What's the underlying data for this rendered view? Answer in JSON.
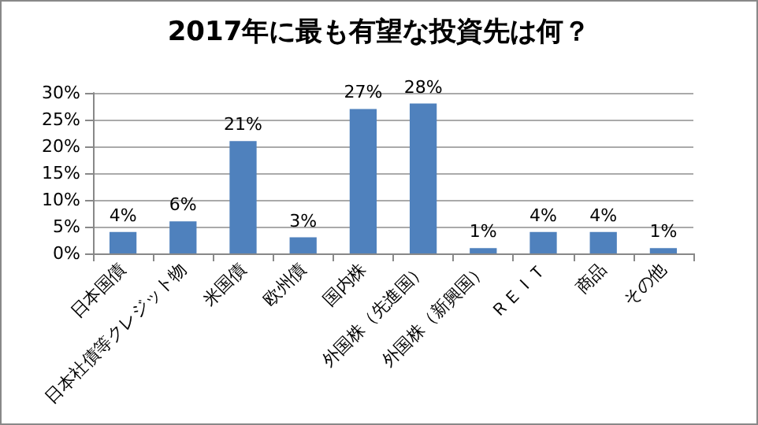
{
  "chart_data": {
    "type": "bar",
    "title": "2017年に最も有望な投資先は何？",
    "categories": [
      "日本国債",
      "日本社債等クレジット物",
      "米国債",
      "欧州債",
      "国内株",
      "外国株（先進国）",
      "外国株（新興国）",
      "ＲＥＩＴ",
      "商品",
      "その他"
    ],
    "values": [
      4,
      6,
      21,
      3,
      27,
      28,
      1,
      4,
      4,
      1
    ],
    "value_labels": [
      "4%",
      "6%",
      "21%",
      "3%",
      "27%",
      "28%",
      "1%",
      "4%",
      "4%",
      "1%"
    ],
    "color": "#4f81bd",
    "ylim": [
      0,
      30
    ],
    "yticks": [
      {
        "value": 0,
        "label": "0%"
      },
      {
        "value": 5,
        "label": "5%"
      },
      {
        "value": 10,
        "label": "10%"
      },
      {
        "value": 15,
        "label": "15%"
      },
      {
        "value": 20,
        "label": "20%"
      },
      {
        "value": 25,
        "label": "25%"
      },
      {
        "value": 30,
        "label": "30%"
      }
    ],
    "grid": "y"
  }
}
